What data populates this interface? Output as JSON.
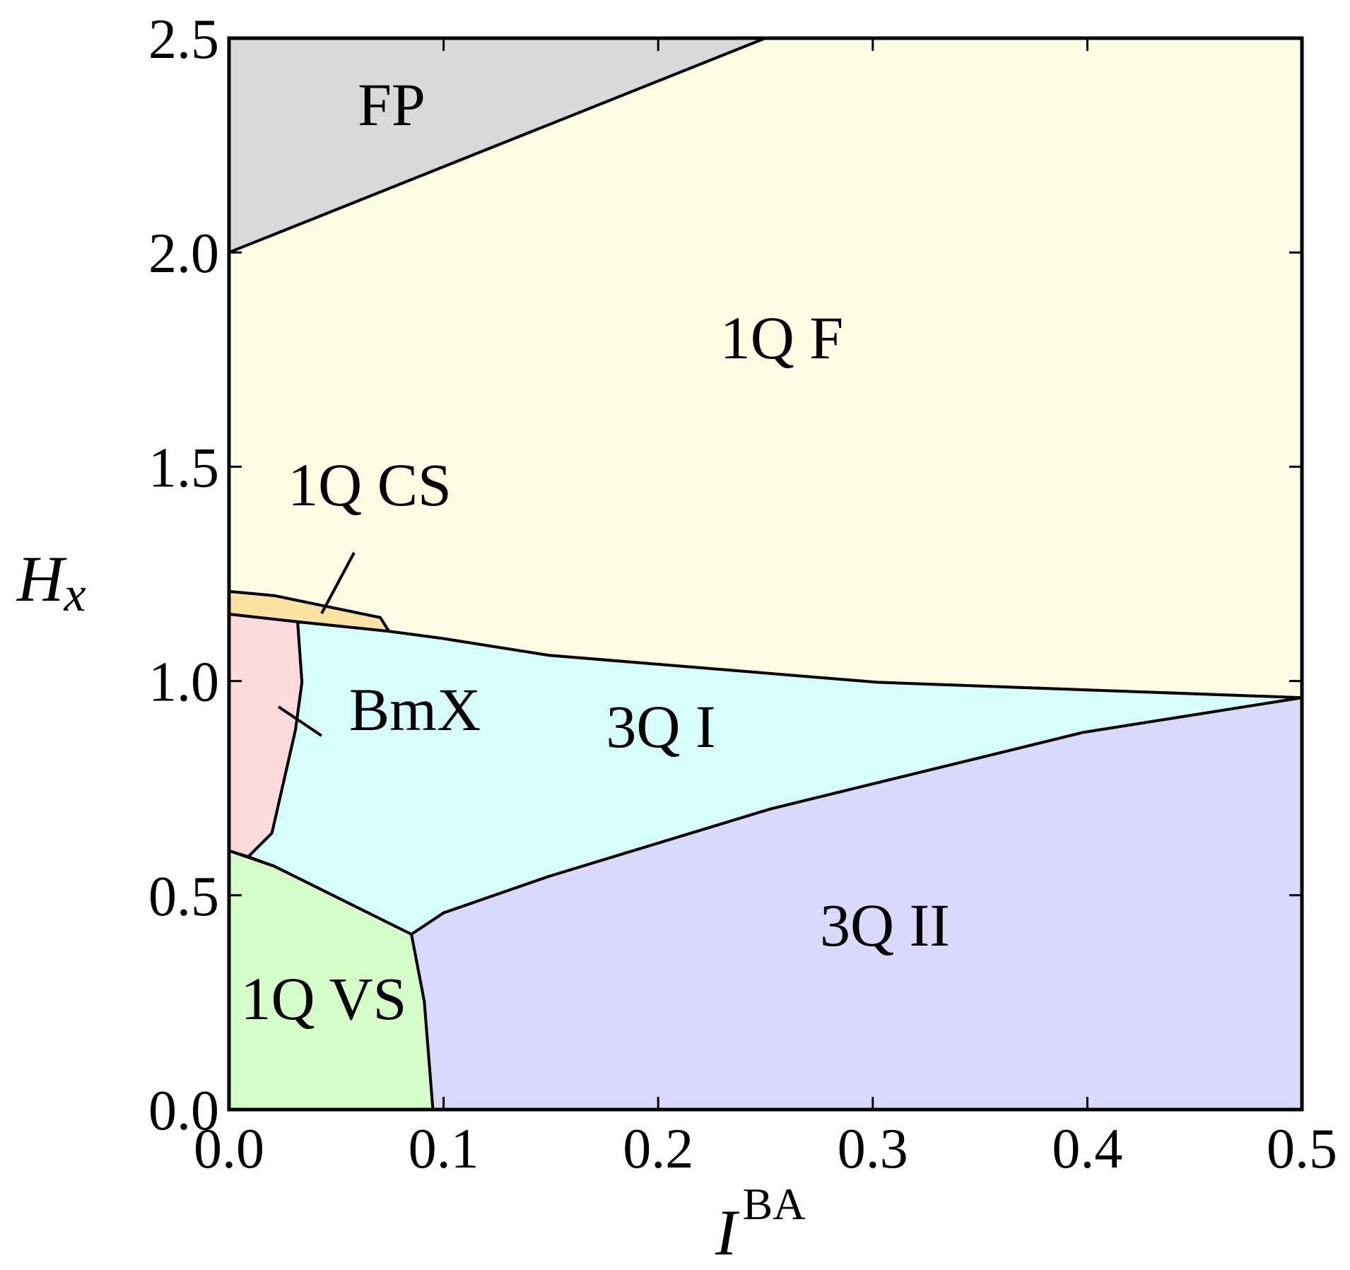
{
  "chart_data": {
    "type": "phase",
    "xlabel": {
      "text": "I",
      "sup": "BA"
    },
    "ylabel": {
      "text": "H",
      "sub": "x"
    },
    "xlim": [
      0,
      0.5
    ],
    "ylim": [
      0,
      2.5
    ],
    "xticks": [
      {
        "value": 0,
        "label": "0.0"
      },
      0.1,
      0.2,
      0.3,
      0.4,
      0.5
    ],
    "yticks": [
      {
        "value": 0,
        "label": "0.0"
      },
      0.5,
      {
        "value": 1,
        "label": "1.0"
      },
      1.5,
      {
        "value": 2,
        "label": "2.0"
      },
      2.5
    ],
    "regions": [
      {
        "name": "FP",
        "color": "#d9d9d9",
        "x": [
          0,
          0.25,
          0
        ],
        "y": [
          2.0,
          2.5,
          2.5
        ]
      },
      {
        "name": "1Q F",
        "color": "#fdfde4",
        "x": [
          0,
          0.25,
          0.5,
          0.5,
          0.302,
          0.149,
          0.0986,
          0.0745,
          0.0705,
          0.0213,
          0
        ],
        "y": [
          2.0,
          2.5,
          2.5,
          0.961,
          0.997,
          1.06,
          1.1,
          1.116,
          1.148,
          1.199,
          1.209
        ]
      },
      {
        "name": "1Q CS",
        "color": "#fbe1a2",
        "x": [
          0,
          0.0213,
          0.0705,
          0.0745,
          0.032,
          0
        ],
        "y": [
          1.209,
          1.199,
          1.148,
          1.116,
          1.138,
          1.156
        ]
      },
      {
        "name": "BmX",
        "color": "#fadadb",
        "x": [
          0,
          0.032,
          0.034,
          0.031,
          0.02,
          0.009,
          0
        ],
        "y": [
          1.156,
          1.138,
          0.997,
          0.886,
          0.645,
          0.59,
          0.604
        ]
      },
      {
        "name": "3Q I",
        "color": "#d5fdfb",
        "x": [
          0.032,
          0.0745,
          0.0986,
          0.149,
          0.302,
          0.5,
          0.398,
          0.252,
          0.149,
          0.1,
          0.085,
          0.021,
          0.009,
          0.02,
          0.031,
          0.034
        ],
        "y": [
          1.138,
          1.116,
          1.1,
          1.06,
          0.997,
          0.961,
          0.88,
          0.701,
          0.544,
          0.459,
          0.409,
          0.568,
          0.59,
          0.645,
          0.886,
          0.997
        ]
      },
      {
        "name": "3Q II",
        "color": "#d9d9fb",
        "x": [
          0.085,
          0.1,
          0.149,
          0.252,
          0.398,
          0.5,
          0.5,
          0.095,
          0.091
        ],
        "y": [
          0.409,
          0.459,
          0.544,
          0.701,
          0.88,
          0.961,
          0,
          0,
          0.252
        ]
      },
      {
        "name": "1Q VS",
        "color": "#d5fdc8",
        "x": [
          0,
          0.021,
          0.085,
          0.091,
          0.095,
          0
        ],
        "y": [
          0.604,
          0.568,
          0.409,
          0.252,
          0,
          0
        ]
      }
    ]
  }
}
